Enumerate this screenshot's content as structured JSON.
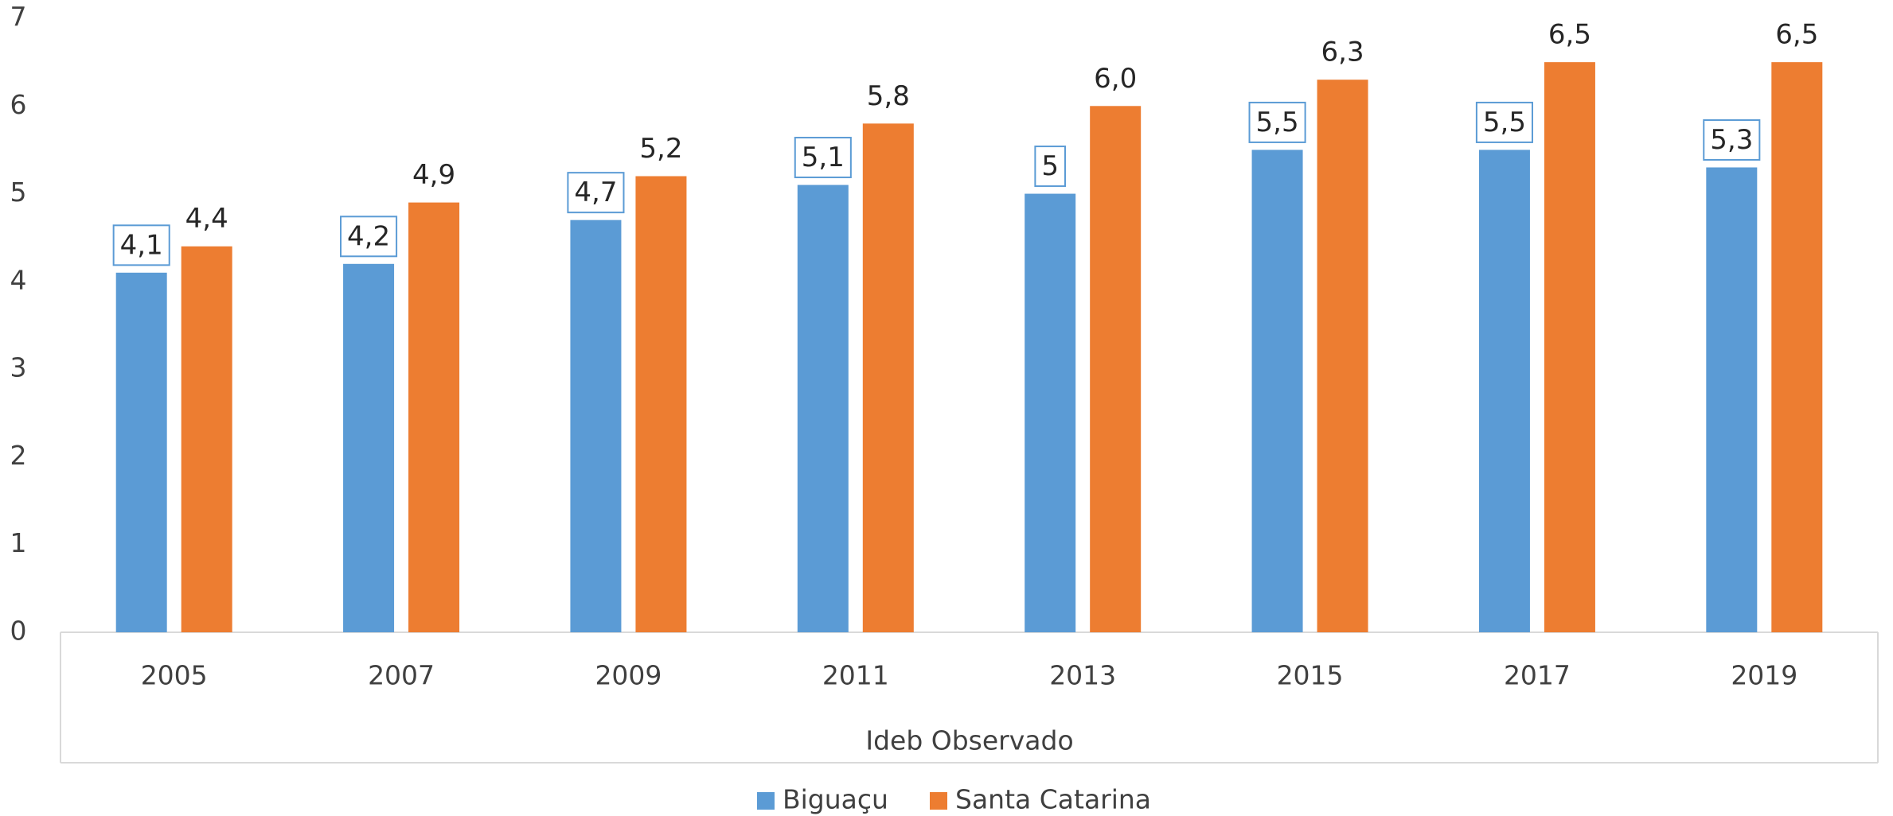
{
  "chart_data": {
    "type": "bar",
    "categories": [
      "2005",
      "2007",
      "2009",
      "2011",
      "2013",
      "2015",
      "2017",
      "2019"
    ],
    "series": [
      {
        "name": "Biguaçu",
        "color": "#5b9bd5",
        "values": [
          4.1,
          4.2,
          4.7,
          5.1,
          5,
          5.5,
          5.5,
          5.3
        ],
        "value_labels": [
          "4,1",
          "4,2",
          "4,7",
          "5,1",
          "5",
          "5,5",
          "5,5",
          "5,3"
        ]
      },
      {
        "name": "Santa Catarina",
        "color": "#ed7d31",
        "values": [
          4.4,
          4.9,
          5.2,
          5.8,
          6.0,
          6.3,
          6.5,
          6.5
        ],
        "value_labels": [
          "4,4",
          "4,9",
          "5,2",
          "5,8",
          "6,0",
          "6,3",
          "6,5",
          "6,5"
        ]
      }
    ],
    "xlabel": "Ideb Observado",
    "ylim": [
      0,
      7
    ],
    "yticks": [
      0,
      1,
      2,
      3,
      4,
      5,
      6,
      7
    ],
    "grid": false,
    "legend": "bottom"
  }
}
